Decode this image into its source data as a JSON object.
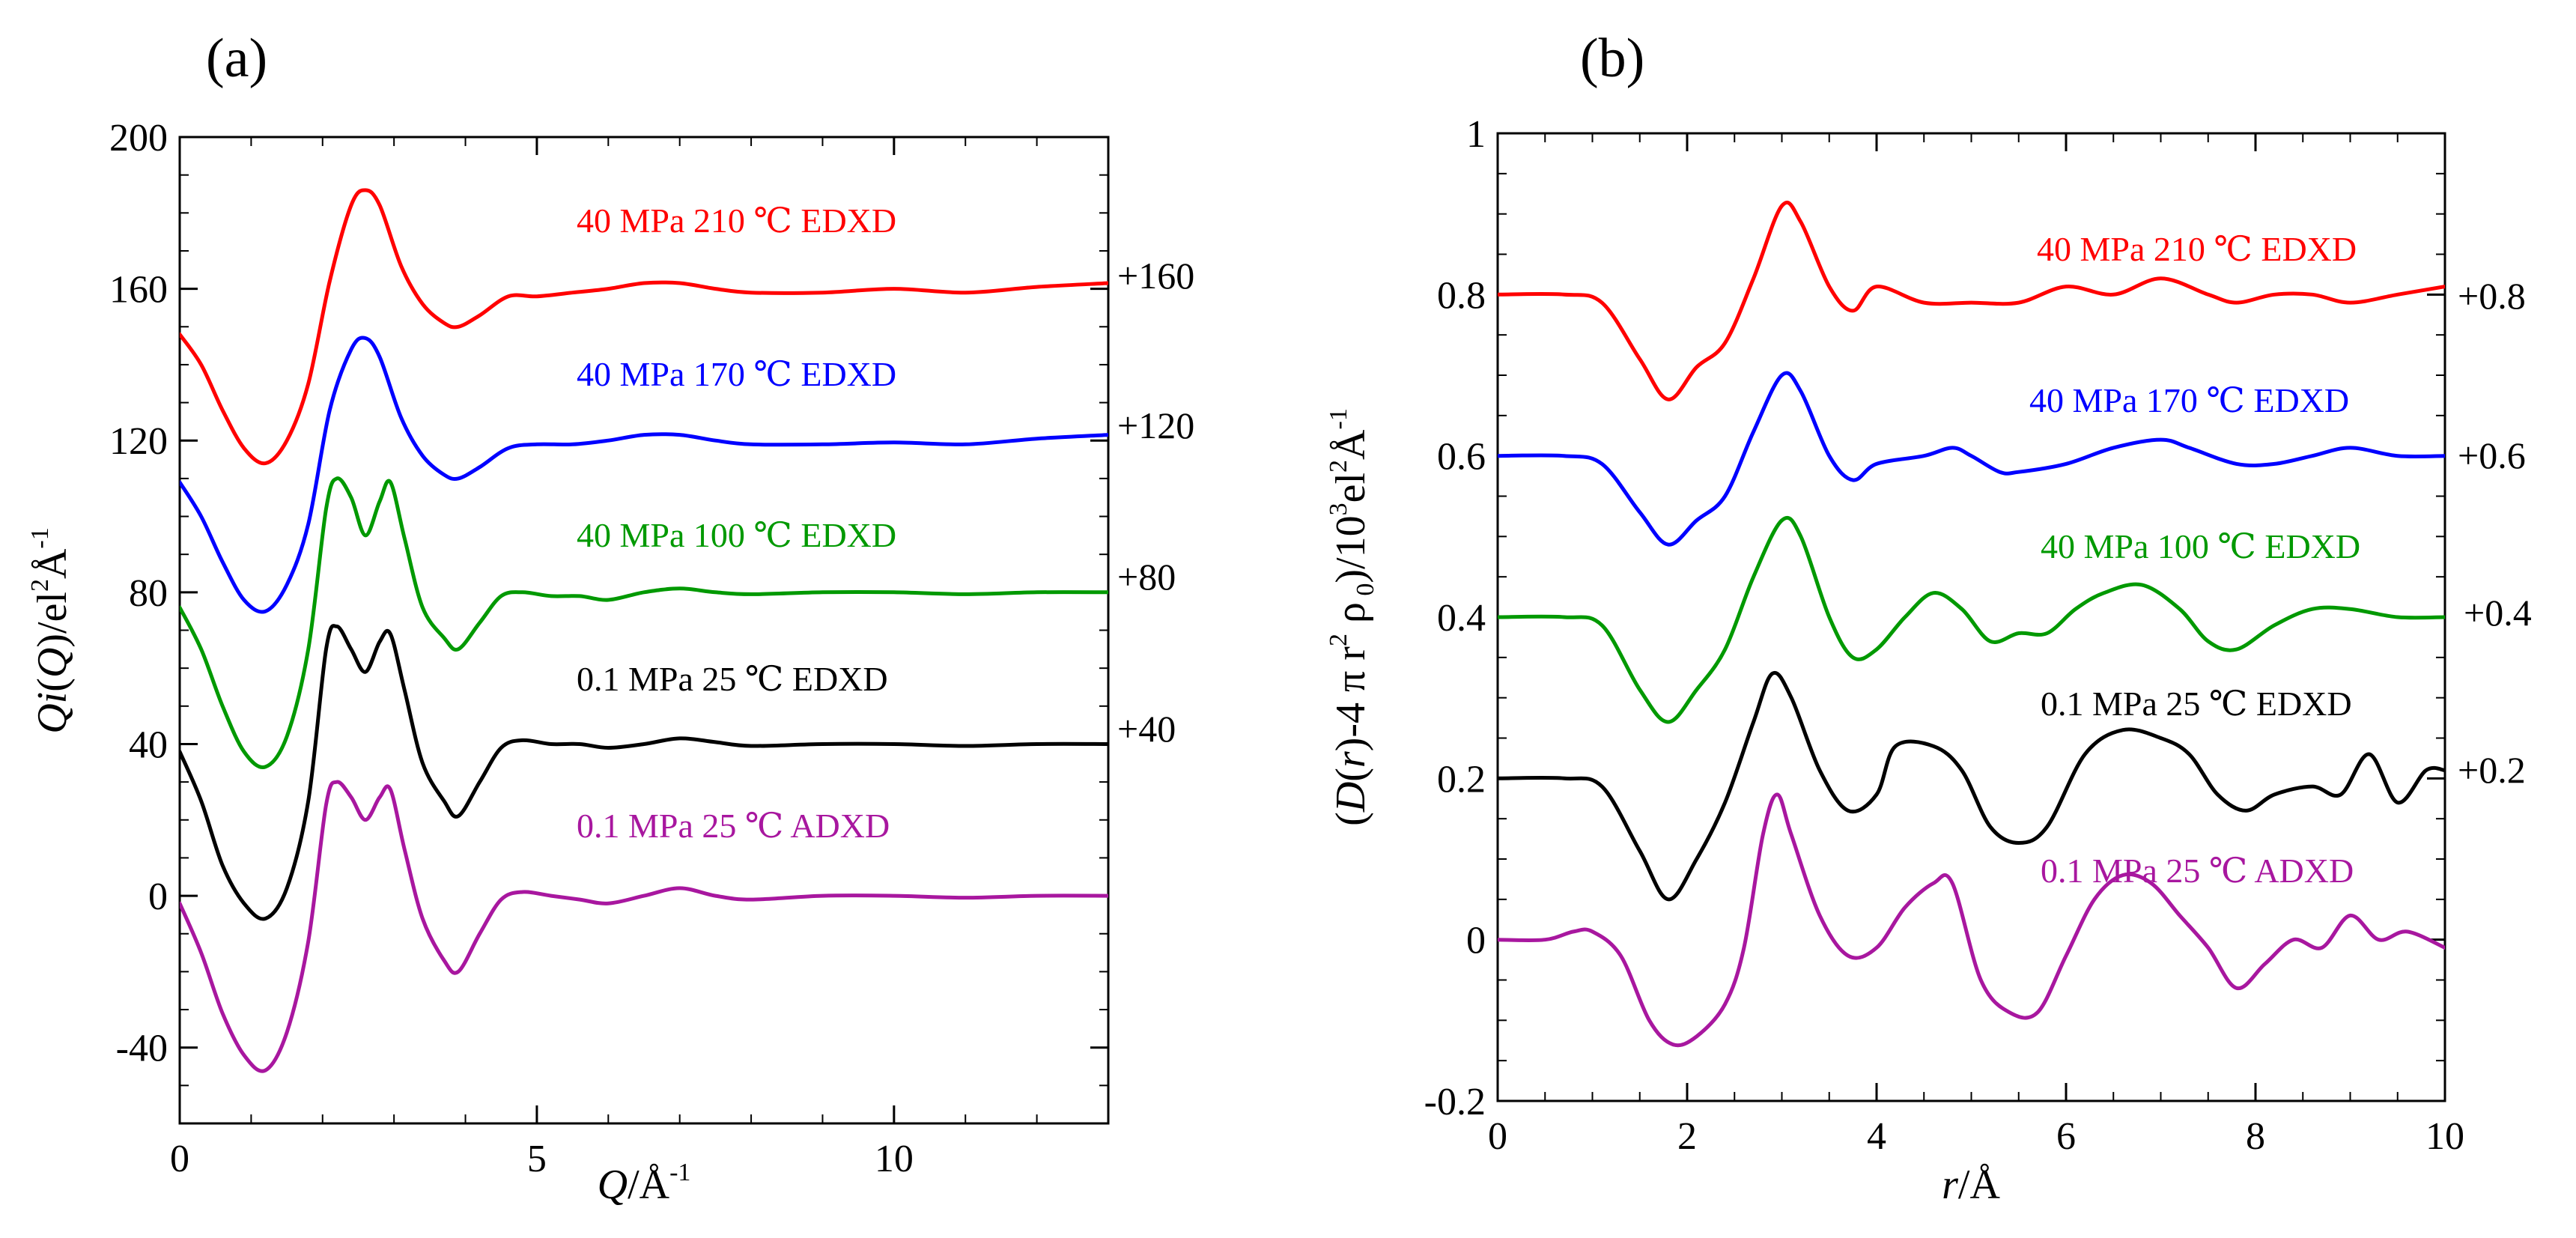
{
  "chart_data": [
    {
      "type": "line",
      "panel_label": "(a)",
      "xlabel": {
        "main": "Q",
        "rest": "/Å",
        "sup": "-1"
      },
      "ylabel": {
        "pre": "Q",
        "ital": "i",
        "paren1": "(",
        "q": "Q",
        "paren2": ")",
        "unit": "/el",
        "sup2": "2",
        "A": "Å",
        "supm1": "-1"
      },
      "xlim": [
        0,
        13
      ],
      "ylim": [
        -60,
        200
      ],
      "x_ticks": [
        0,
        5,
        10
      ],
      "x_tick_labels": [
        "0",
        "5",
        "10"
      ],
      "y_ticks": [
        -40,
        0,
        40,
        80,
        120,
        160,
        200
      ],
      "y_tick_labels": [
        "-40",
        "0",
        "40",
        "80",
        "120",
        "160",
        "200"
      ],
      "offsets": [
        "+160",
        "+120",
        "+80",
        "+40"
      ],
      "series": [
        {
          "name": "40 MPa  210 ℃  EDXD",
          "color": "#ff0000",
          "offset": 160,
          "x": [
            0,
            0.3,
            0.6,
            0.9,
            1.2,
            1.5,
            1.8,
            2.1,
            2.4,
            2.6,
            2.8,
            3.1,
            3.4,
            3.7,
            3.9,
            4.2,
            4.6,
            5.0,
            5.5,
            6.0,
            6.5,
            7.0,
            7.5,
            8.0,
            9.0,
            10.0,
            11.0,
            12.0,
            13.0
          ],
          "y": [
            -12,
            -20,
            -32,
            -42,
            -46,
            -40,
            -25,
            2,
            22,
            26,
            22,
            6,
            -4,
            -9,
            -10,
            -7,
            -2,
            -2,
            -1,
            0,
            1.5,
            1.5,
            0,
            -1,
            -1,
            0,
            -1,
            0.5,
            1.5
          ]
        },
        {
          "name": "40 MPa  170 ℃  EDXD",
          "color": "#0000ff",
          "offset": 120,
          "x": [
            0,
            0.3,
            0.6,
            0.9,
            1.2,
            1.5,
            1.8,
            2.1,
            2.4,
            2.6,
            2.8,
            3.1,
            3.4,
            3.7,
            3.9,
            4.2,
            4.6,
            5.0,
            5.5,
            6.0,
            6.5,
            7.0,
            7.5,
            8.0,
            9.0,
            10.0,
            11.0,
            12.0,
            13.0
          ],
          "y": [
            -11,
            -20,
            -32,
            -42,
            -45,
            -38,
            -22,
            8,
            24,
            27,
            22,
            6,
            -4,
            -9,
            -10,
            -7,
            -2,
            -1,
            -1,
            0,
            1.5,
            1.5,
            0,
            -1,
            -1,
            -0.5,
            -1,
            0.5,
            1.5
          ]
        },
        {
          "name": "40 MPa  100 ℃  EDXD",
          "color": "#009900",
          "offset": 80,
          "x": [
            0,
            0.3,
            0.6,
            0.9,
            1.2,
            1.5,
            1.8,
            2.05,
            2.2,
            2.4,
            2.6,
            2.8,
            2.95,
            3.15,
            3.4,
            3.7,
            3.9,
            4.2,
            4.5,
            4.8,
            5.2,
            5.6,
            6.0,
            6.5,
            7.0,
            7.5,
            8.0,
            9.0,
            10.0,
            11.0,
            12.0,
            13.0
          ],
          "y": [
            -4,
            -15,
            -30,
            -42,
            -46,
            -38,
            -15,
            22,
            30,
            25,
            15,
            24,
            29,
            14,
            -4,
            -12,
            -15,
            -8,
            -1,
            0,
            -1,
            -1,
            -2,
            0,
            1,
            0,
            -0.5,
            0,
            0,
            -0.5,
            0,
            0
          ]
        },
        {
          "name": "0.1 MPa  25 ℃  EDXD",
          "color": "#000000",
          "offset": 40,
          "x": [
            0,
            0.3,
            0.6,
            0.9,
            1.2,
            1.5,
            1.8,
            2.05,
            2.2,
            2.4,
            2.6,
            2.8,
            2.95,
            3.15,
            3.4,
            3.7,
            3.9,
            4.2,
            4.5,
            4.8,
            5.2,
            5.6,
            6.0,
            6.5,
            7.0,
            7.5,
            8.0,
            9.0,
            10.0,
            11.0,
            12.0,
            13.0
          ],
          "y": [
            -2,
            -15,
            -32,
            -42,
            -46,
            -38,
            -15,
            25,
            31,
            25,
            19,
            27,
            29,
            14,
            -5,
            -15,
            -19,
            -10,
            -1,
            1,
            0,
            0,
            -1,
            0,
            1.5,
            0.5,
            -0.5,
            0,
            0,
            -0.5,
            0,
            0
          ]
        },
        {
          "name": "0.1 MPa 25 ℃ ADXD",
          "color": "#a8179f",
          "offset": 0,
          "x": [
            0,
            0.3,
            0.6,
            0.9,
            1.2,
            1.5,
            1.8,
            2.05,
            2.2,
            2.4,
            2.6,
            2.8,
            2.95,
            3.15,
            3.4,
            3.7,
            3.9,
            4.2,
            4.5,
            4.8,
            5.2,
            5.6,
            6.0,
            6.5,
            7.0,
            7.5,
            8.0,
            9.0,
            10.0,
            11.0,
            12.0,
            13.0
          ],
          "y": [
            -2,
            -15,
            -31,
            -42,
            -46,
            -36,
            -12,
            24,
            30,
            26,
            20,
            26,
            28,
            12,
            -6,
            -17,
            -20,
            -10,
            -1,
            1,
            0,
            -1,
            -2,
            0,
            2,
            0,
            -1,
            0,
            0,
            -0.5,
            0,
            0
          ]
        }
      ]
    },
    {
      "type": "line",
      "panel_label": "(b)",
      "xlabel": {
        "main": "r",
        "rest": "/Å"
      },
      "ylabel": {
        "open": "(",
        "D": "D",
        "p1": "(",
        "r": "r",
        "p2": ")",
        "mid": "-4 π r",
        "sup2a": "2",
        "rho": " ρ",
        "sub0": " 0",
        "close": ")/10",
        "sup3": "3",
        "el": "el",
        "sup2b": "2",
        "A": "Å",
        "supm1": "-1"
      },
      "xlim": [
        0,
        10
      ],
      "ylim": [
        -0.2,
        1.0
      ],
      "x_ticks": [
        0,
        2,
        4,
        6,
        8,
        10
      ],
      "x_tick_labels": [
        "0",
        "2",
        "4",
        "6",
        "8",
        "10"
      ],
      "y_ticks": [
        -0.2,
        0,
        0.2,
        0.4,
        0.6,
        0.8,
        1.0
      ],
      "y_tick_labels": [
        "-0.2",
        "0",
        "0.2",
        "0.4",
        "0.6",
        "0.8",
        "1"
      ],
      "offsets": [
        "+0.8",
        "+0.6",
        "+0.4",
        "+0.2"
      ],
      "series": [
        {
          "name": "40 MPa 210 ℃ EDXD",
          "color": "#ff0000",
          "offset": 0.8,
          "x": [
            0,
            0.7,
            1.1,
            1.5,
            1.8,
            2.1,
            2.4,
            2.7,
            3.0,
            3.2,
            3.5,
            3.75,
            4.0,
            4.5,
            5.0,
            5.5,
            6.0,
            6.5,
            7.0,
            7.5,
            7.8,
            8.2,
            8.6,
            9.0,
            9.5,
            10.0
          ],
          "y": [
            0,
            0,
            -0.01,
            -0.08,
            -0.13,
            -0.09,
            -0.06,
            0.02,
            0.11,
            0.09,
            0.01,
            -0.02,
            0.01,
            -0.01,
            -0.01,
            -0.01,
            0.01,
            0.0,
            0.02,
            0.0,
            -0.01,
            0.0,
            0.0,
            -0.01,
            0.0,
            0.01
          ]
        },
        {
          "name": "40 MPa 170 ℃ EDXD",
          "color": "#0000ff",
          "offset": 0.6,
          "x": [
            0,
            0.7,
            1.1,
            1.5,
            1.8,
            2.1,
            2.4,
            2.7,
            3.0,
            3.2,
            3.5,
            3.75,
            4.0,
            4.5,
            4.8,
            5.0,
            5.3,
            5.5,
            6.0,
            6.5,
            7.0,
            7.3,
            7.8,
            8.2,
            8.6,
            9.0,
            9.5,
            10.0
          ],
          "y": [
            0,
            0,
            -0.01,
            -0.07,
            -0.11,
            -0.08,
            -0.05,
            0.03,
            0.1,
            0.08,
            0.0,
            -0.03,
            -0.01,
            0.0,
            0.01,
            0.0,
            -0.02,
            -0.02,
            -0.01,
            0.01,
            0.02,
            0.01,
            -0.01,
            -0.01,
            0.0,
            0.01,
            0.0,
            0.0
          ]
        },
        {
          "name": "40 MPa 100 ℃ EDXD",
          "color": "#009900",
          "offset": 0.4,
          "x": [
            0,
            0.7,
            1.1,
            1.5,
            1.8,
            2.1,
            2.4,
            2.7,
            3.0,
            3.2,
            3.5,
            3.75,
            4.0,
            4.3,
            4.6,
            4.9,
            5.2,
            5.5,
            5.8,
            6.1,
            6.4,
            6.8,
            7.2,
            7.5,
            7.8,
            8.2,
            8.6,
            9.0,
            9.5,
            10.0
          ],
          "y": [
            0,
            0,
            -0.01,
            -0.09,
            -0.13,
            -0.09,
            -0.04,
            0.05,
            0.12,
            0.1,
            0.0,
            -0.05,
            -0.04,
            0.0,
            0.03,
            0.01,
            -0.03,
            -0.02,
            -0.02,
            0.01,
            0.03,
            0.04,
            0.01,
            -0.03,
            -0.04,
            -0.01,
            0.01,
            0.01,
            0.0,
            0.0
          ]
        },
        {
          "name": "0.1 MPa 25 ℃ EDXD",
          "color": "#000000",
          "offset": 0.2,
          "x": [
            0,
            0.7,
            1.1,
            1.5,
            1.8,
            2.1,
            2.4,
            2.7,
            2.9,
            3.1,
            3.4,
            3.7,
            4.0,
            4.2,
            4.6,
            4.9,
            5.2,
            5.5,
            5.8,
            6.2,
            6.6,
            7.0,
            7.3,
            7.6,
            7.9,
            8.2,
            8.6,
            8.9,
            9.2,
            9.5,
            9.8,
            10.0
          ],
          "y": [
            0,
            0,
            -0.01,
            -0.09,
            -0.15,
            -0.1,
            -0.03,
            0.07,
            0.13,
            0.1,
            0.01,
            -0.04,
            -0.02,
            0.04,
            0.04,
            0.01,
            -0.06,
            -0.08,
            -0.06,
            0.03,
            0.06,
            0.05,
            0.03,
            -0.02,
            -0.04,
            -0.02,
            -0.01,
            -0.02,
            0.03,
            -0.03,
            0.01,
            0.01
          ]
        },
        {
          "name": "0.1 MPa 25 ℃ ADXD",
          "color": "#a8179f",
          "offset": 0.0,
          "x": [
            0,
            0.5,
            0.8,
            1.0,
            1.3,
            1.6,
            1.85,
            2.1,
            2.4,
            2.6,
            2.8,
            2.95,
            3.1,
            3.4,
            3.7,
            4.0,
            4.3,
            4.6,
            4.8,
            5.1,
            5.4,
            5.7,
            6.0,
            6.3,
            6.6,
            6.9,
            7.2,
            7.5,
            7.8,
            8.1,
            8.4,
            8.7,
            9.0,
            9.3,
            9.6,
            10.0
          ],
          "y": [
            0,
            0,
            0.01,
            0.01,
            -0.02,
            -0.1,
            -0.13,
            -0.12,
            -0.08,
            -0.01,
            0.13,
            0.18,
            0.13,
            0.03,
            -0.02,
            -0.01,
            0.04,
            0.07,
            0.07,
            -0.05,
            -0.09,
            -0.09,
            -0.02,
            0.05,
            0.08,
            0.07,
            0.03,
            -0.01,
            -0.06,
            -0.03,
            0.0,
            -0.01,
            0.03,
            0.0,
            0.01,
            -0.01
          ]
        }
      ]
    }
  ]
}
